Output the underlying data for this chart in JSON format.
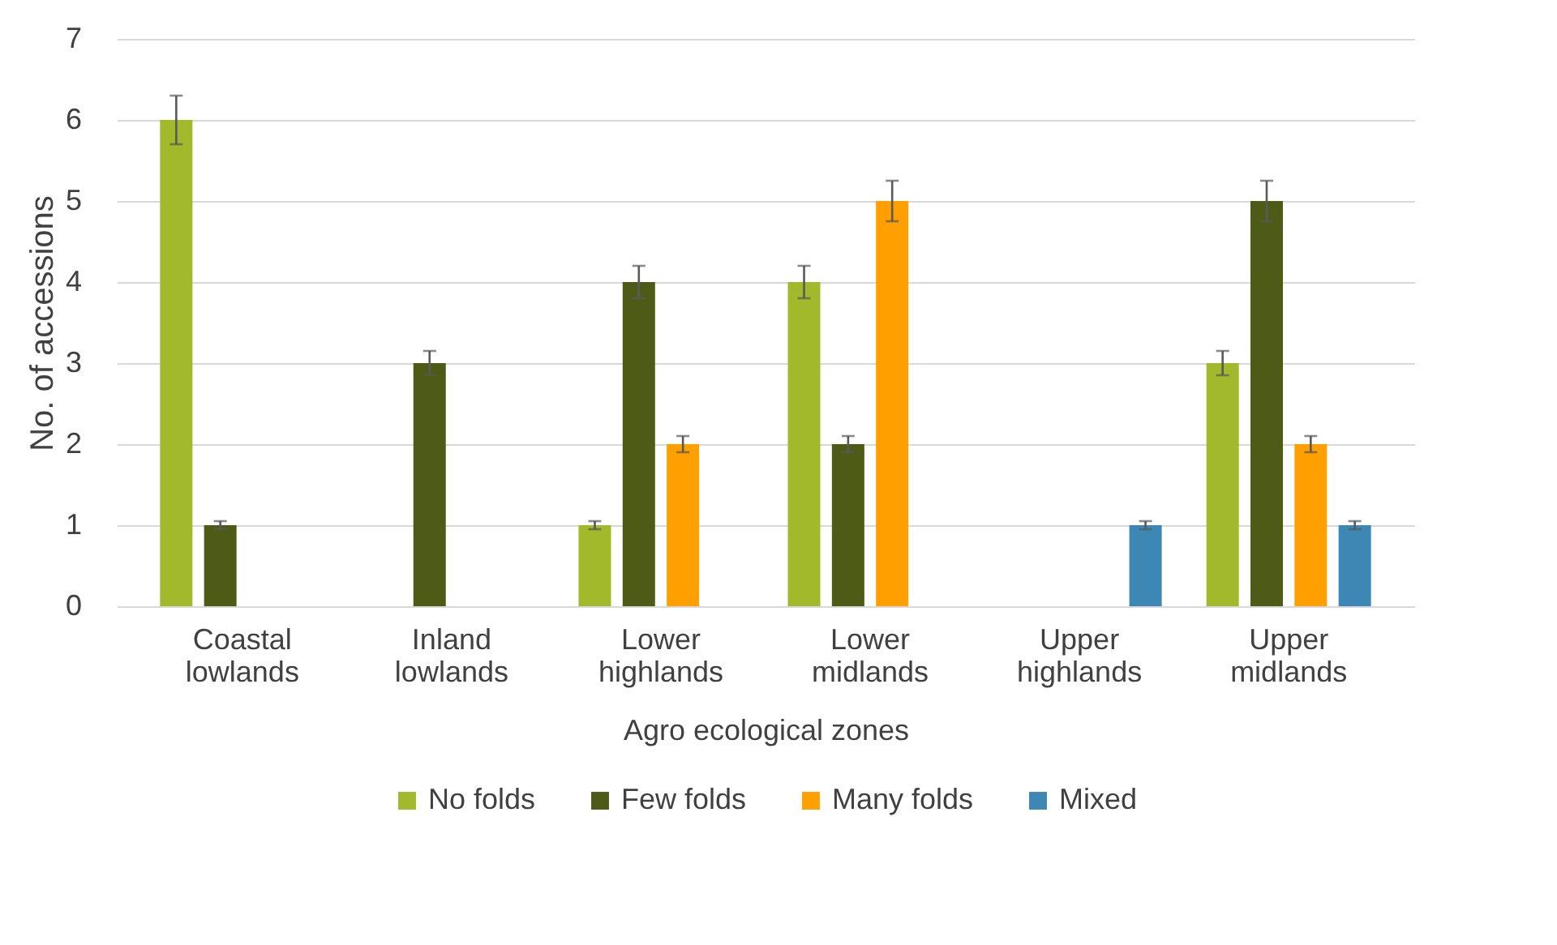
{
  "chart_data": {
    "type": "bar",
    "xlabel": "Agro ecological zones",
    "ylabel": "No. of accessions",
    "categories": [
      "Coastal lowlands",
      "Inland lowlands",
      "Lower highlands",
      "Lower midlands",
      "Upper highlands",
      "Upper midlands"
    ],
    "series": [
      {
        "name": "No folds",
        "color": "#a2b92c",
        "values": [
          6,
          0,
          1,
          4,
          0,
          3
        ],
        "errors": [
          0.3,
          null,
          0.05,
          0.2,
          null,
          0.15
        ]
      },
      {
        "name": "Few folds",
        "color": "#4e5b16",
        "values": [
          1,
          3,
          4,
          2,
          0,
          5
        ],
        "errors": [
          0.05,
          0.15,
          0.2,
          0.1,
          null,
          0.25
        ]
      },
      {
        "name": "Many folds",
        "color": "#ffa000",
        "values": [
          0,
          0,
          2,
          5,
          0,
          2
        ],
        "errors": [
          null,
          null,
          0.1,
          0.25,
          null,
          0.1
        ]
      },
      {
        "name": "Mixed",
        "color": "#3c87b3",
        "values": [
          0,
          0,
          0,
          0,
          1,
          1
        ],
        "errors": [
          null,
          null,
          null,
          null,
          0.05,
          0.05
        ]
      }
    ],
    "ylim": [
      0,
      7
    ],
    "yticks": [
      0,
      1,
      2,
      3,
      4,
      5,
      6,
      7
    ],
    "grid": "y",
    "legend": "bottom"
  }
}
